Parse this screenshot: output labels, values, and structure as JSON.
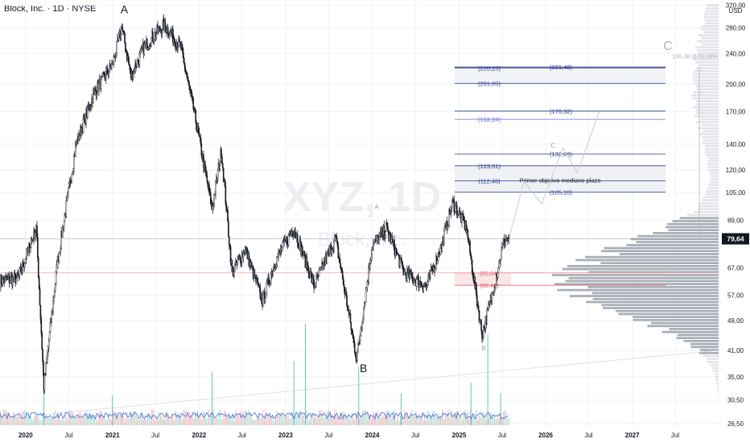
{
  "header": {
    "title": "Block, Inc. · 1D · NYSE"
  },
  "watermark": {
    "symbol": "XYZ, 1D",
    "name": "Block, Inc."
  },
  "currency": "USD",
  "chart_data": {
    "type": "candlestick",
    "title": "Block, Inc. · 1D · NYSE",
    "y_scale": "log",
    "ylim": [
      26,
      330
    ],
    "xlim": [
      "2019-09-15",
      "2027-12-31"
    ],
    "y_ticks": [
      {
        "v": 320,
        "t": "320,00"
      },
      {
        "v": 280,
        "t": "280,00"
      },
      {
        "v": 240,
        "t": "240,00"
      },
      {
        "v": 200,
        "t": "200,00"
      },
      {
        "v": 170,
        "t": "170,00"
      },
      {
        "v": 140,
        "t": "140,00"
      },
      {
        "v": 120,
        "t": "120,00"
      },
      {
        "v": 105,
        "t": "105,00"
      },
      {
        "v": 89,
        "t": "89,00"
      },
      {
        "v": 67,
        "t": "67,00"
      },
      {
        "v": 57,
        "t": "57,00"
      },
      {
        "v": 49,
        "t": "49,00"
      },
      {
        "v": 41,
        "t": "41,00"
      },
      {
        "v": 35,
        "t": "35,00"
      },
      {
        "v": 30.5,
        "t": "30,50"
      },
      {
        "v": 26.5,
        "t": "26,50"
      }
    ],
    "x_ticks": [
      {
        "d": "2020-01-01",
        "t": "2020",
        "bold": true
      },
      {
        "d": "2020-07-01",
        "t": "Jul",
        "bold": false
      },
      {
        "d": "2021-01-01",
        "t": "2021",
        "bold": true
      },
      {
        "d": "2021-07-01",
        "t": "Jul",
        "bold": false
      },
      {
        "d": "2022-01-01",
        "t": "2022",
        "bold": true
      },
      {
        "d": "2022-07-01",
        "t": "Jul",
        "bold": false
      },
      {
        "d": "2023-01-01",
        "t": "2023",
        "bold": true
      },
      {
        "d": "2023-07-01",
        "t": "Jul",
        "bold": false
      },
      {
        "d": "2024-01-01",
        "t": "2024",
        "bold": true
      },
      {
        "d": "2024-07-01",
        "t": "Jul",
        "bold": false
      },
      {
        "d": "2025-01-01",
        "t": "2025",
        "bold": true
      },
      {
        "d": "2025-07-01",
        "t": "Jul",
        "bold": false
      },
      {
        "d": "2026-01-01",
        "t": "2026",
        "bold": true
      },
      {
        "d": "2026-07-01",
        "t": "Jul",
        "bold": false
      },
      {
        "d": "2027-01-01",
        "t": "2027",
        "bold": true
      },
      {
        "d": "2027-07-01",
        "t": "Jul",
        "bold": false
      }
    ],
    "price_path": [
      {
        "d": "2019-09-15",
        "p": 62
      },
      {
        "d": "2019-12-01",
        "p": 63
      },
      {
        "d": "2020-02-15",
        "p": 85
      },
      {
        "d": "2020-03-18",
        "p": 33
      },
      {
        "d": "2020-05-15",
        "p": 70
      },
      {
        "d": "2020-08-01",
        "p": 140
      },
      {
        "d": "2020-10-15",
        "p": 190
      },
      {
        "d": "2021-01-01",
        "p": 225
      },
      {
        "d": "2021-02-10",
        "p": 280
      },
      {
        "d": "2021-03-20",
        "p": 210
      },
      {
        "d": "2021-05-15",
        "p": 250
      },
      {
        "d": "2021-08-05",
        "p": 285
      },
      {
        "d": "2021-10-15",
        "p": 250
      },
      {
        "d": "2021-12-15",
        "p": 165
      },
      {
        "d": "2022-02-25",
        "p": 95
      },
      {
        "d": "2022-04-05",
        "p": 135
      },
      {
        "d": "2022-05-20",
        "p": 65
      },
      {
        "d": "2022-07-15",
        "p": 75
      },
      {
        "d": "2022-09-25",
        "p": 55
      },
      {
        "d": "2022-11-20",
        "p": 70
      },
      {
        "d": "2023-02-05",
        "p": 85
      },
      {
        "d": "2023-05-01",
        "p": 60
      },
      {
        "d": "2023-07-30",
        "p": 80
      },
      {
        "d": "2023-10-27",
        "p": 39
      },
      {
        "d": "2023-12-31",
        "p": 76
      },
      {
        "d": "2024-03-01",
        "p": 85
      },
      {
        "d": "2024-05-15",
        "p": 65
      },
      {
        "d": "2024-08-15",
        "p": 60
      },
      {
        "d": "2024-10-15",
        "p": 75
      },
      {
        "d": "2024-12-05",
        "p": 99
      },
      {
        "d": "2025-02-01",
        "p": 85
      },
      {
        "d": "2025-04-08",
        "p": 45
      },
      {
        "d": "2025-05-20",
        "p": 57
      },
      {
        "d": "2025-07-10",
        "p": 79
      },
      {
        "d": "2025-07-30",
        "p": 79.64
      }
    ],
    "last_price": {
      "value": 79.64,
      "label": "79,64"
    },
    "red_level": {
      "value": 65.04
    },
    "volume_spikes": [
      {
        "d": "2020-03-18",
        "v": 0.35
      },
      {
        "d": "2021-01-01",
        "v": 0.28
      },
      {
        "d": "2022-02-25",
        "v": 0.5
      },
      {
        "d": "2023-02-05",
        "v": 0.6
      },
      {
        "d": "2023-03-25",
        "v": 0.95
      },
      {
        "d": "2023-11-05",
        "v": 0.55
      },
      {
        "d": "2024-05-02",
        "v": 0.3
      },
      {
        "d": "2025-02-20",
        "v": 0.4
      },
      {
        "d": "2025-05-02",
        "v": 0.85
      },
      {
        "d": "2025-06-25",
        "v": 0.3
      }
    ],
    "fib_levels": [
      {
        "value": 221.48,
        "label": "(221,48)",
        "color": "#2a3a8f"
      },
      {
        "value": 220.25,
        "label": "(220,25)",
        "color": "#2a3a8f"
      },
      {
        "value": 201.05,
        "label": "(201,05)",
        "color": "#2a3a8f"
      },
      {
        "value": 170.32,
        "label": "(170,32)",
        "color": "#2a3a8f"
      },
      {
        "value": 162.24,
        "label": "(162,24)",
        "color": "#5a6fd8"
      },
      {
        "value": 132.0,
        "label": "(132,00)",
        "color": "#2a3a8f"
      },
      {
        "value": 123.01,
        "label": "(123,01)",
        "color": "#2a3a8f"
      },
      {
        "value": 112.46,
        "label": "(112,46)",
        "color": "#2a3a8f"
      },
      {
        "value": 105.1,
        "label": "(105,10)",
        "color": "#2a3a8f"
      },
      {
        "value": 65.04,
        "label": "(65,04)",
        "color": "#e0505a"
      },
      {
        "value": 60.42,
        "label": "(60,42)",
        "color": "#e0505a"
      }
    ],
    "wave_labels": [
      {
        "text": "A",
        "d": "2021-02-20",
        "p": 305,
        "size": 14,
        "color": "#131722"
      },
      {
        "text": "B",
        "d": "2023-11-25",
        "p": 36,
        "size": 14,
        "color": "#131722"
      },
      {
        "text": "C",
        "d": "2027-06-01",
        "p": 245,
        "size": 16,
        "color": "#b0b4bd"
      },
      {
        "text": "A",
        "d": "2024-01-20",
        "p": 95,
        "size": 8,
        "color": "#9aa0aa"
      },
      {
        "text": "B",
        "d": "2025-04-15",
        "p": 41,
        "size": 8,
        "color": "#9aa0aa"
      },
      {
        "text": "C",
        "d": "2026-02-01",
        "p": 137,
        "size": 8,
        "color": "#9aa0aa"
      }
    ],
    "annotation": {
      "text": "Primer objetivo mediano plazo",
      "p": 113
    },
    "measure": {
      "text": "136,38 (170,49%) 13",
      "p": 233
    }
  }
}
